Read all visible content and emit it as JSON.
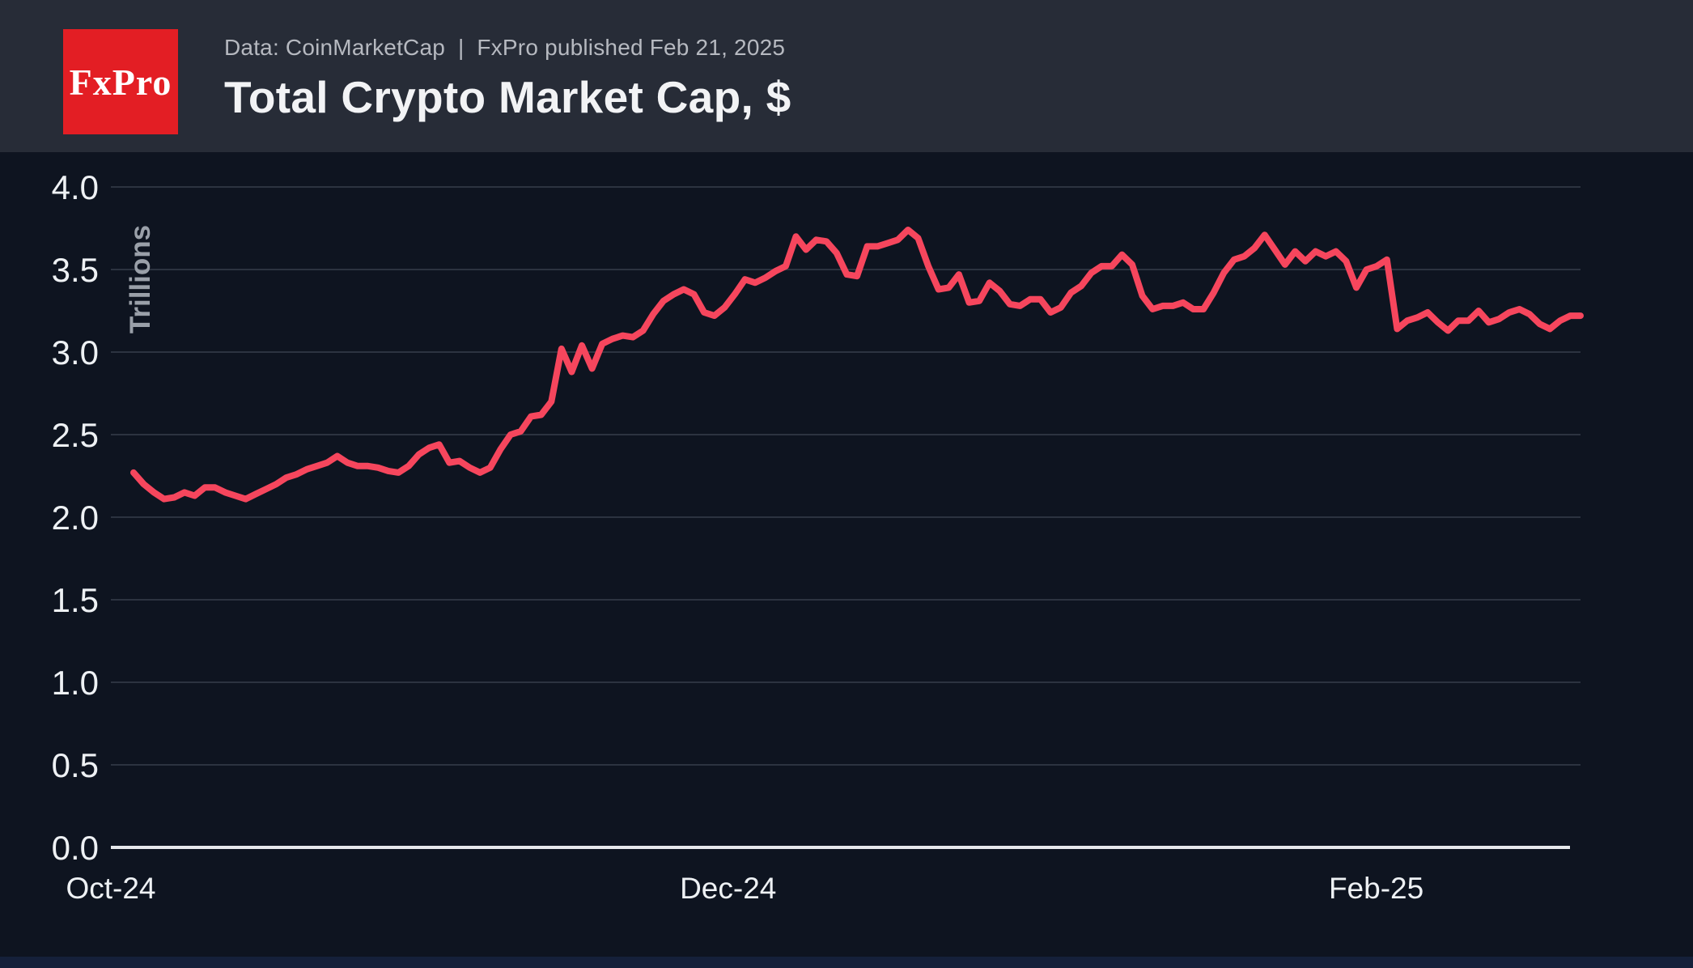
{
  "header": {
    "logo_text": "FxPro",
    "subtitle": "Data: CoinMarketCap  |  FxPro published Feb 21, 2025",
    "title": "Total Crypto Market Cap, $"
  },
  "colors": {
    "header_bg": "#272c37",
    "chart_bg": "#0e1420",
    "logo_red": "#e31e24",
    "line_red": "#f6465d",
    "grid_line": "#2c3340",
    "axis_line": "#e6e8eb",
    "tick_label": "#eef1f4",
    "axis_title_gray": "#9aa0a9",
    "subtitle_gray": "#b6b9c0"
  },
  "chart_data": {
    "type": "line",
    "title": "Total Crypto Market Cap, $",
    "xlabel": "",
    "ylabel": "Trillions",
    "ylim": [
      0.0,
      4.0
    ],
    "yticks": [
      0.0,
      0.5,
      1.0,
      1.5,
      2.0,
      2.5,
      3.0,
      3.5,
      4.0
    ],
    "xticks": [
      {
        "label": "Oct-24",
        "pos": 0.0
      },
      {
        "label": "Dec-24",
        "pos": 0.42
      },
      {
        "label": "Feb-25",
        "pos": 0.861
      }
    ],
    "grid": true,
    "legend": false,
    "series_name": "Total crypto market cap, $ trillions, daily, Oct 2024 - Feb 21 2025",
    "line_color": "#f6465d",
    "values": [
      2.27,
      2.2,
      2.15,
      2.11,
      2.12,
      2.15,
      2.13,
      2.18,
      2.18,
      2.15,
      2.13,
      2.11,
      2.14,
      2.17,
      2.2,
      2.24,
      2.26,
      2.29,
      2.31,
      2.33,
      2.37,
      2.33,
      2.31,
      2.31,
      2.3,
      2.28,
      2.27,
      2.31,
      2.38,
      2.42,
      2.44,
      2.33,
      2.34,
      2.3,
      2.27,
      2.3,
      2.41,
      2.5,
      2.52,
      2.61,
      2.62,
      2.7,
      3.02,
      2.88,
      3.04,
      2.9,
      3.05,
      3.08,
      3.1,
      3.09,
      3.13,
      3.23,
      3.31,
      3.35,
      3.38,
      3.35,
      3.24,
      3.22,
      3.27,
      3.35,
      3.44,
      3.42,
      3.45,
      3.49,
      3.52,
      3.7,
      3.62,
      3.68,
      3.67,
      3.6,
      3.47,
      3.46,
      3.64,
      3.64,
      3.66,
      3.68,
      3.74,
      3.69,
      3.52,
      3.38,
      3.39,
      3.47,
      3.3,
      3.31,
      3.42,
      3.37,
      3.29,
      3.28,
      3.32,
      3.32,
      3.24,
      3.27,
      3.36,
      3.4,
      3.48,
      3.52,
      3.52,
      3.59,
      3.53,
      3.34,
      3.26,
      3.28,
      3.28,
      3.3,
      3.26,
      3.26,
      3.36,
      3.48,
      3.56,
      3.58,
      3.63,
      3.71,
      3.62,
      3.53,
      3.61,
      3.55,
      3.61,
      3.58,
      3.61,
      3.55,
      3.39,
      3.5,
      3.52,
      3.56,
      3.14,
      3.19,
      3.21,
      3.24,
      3.18,
      3.13,
      3.19,
      3.19,
      3.25,
      3.18,
      3.2,
      3.24,
      3.26,
      3.23,
      3.17,
      3.14,
      3.19,
      3.22,
      3.22
    ]
  }
}
